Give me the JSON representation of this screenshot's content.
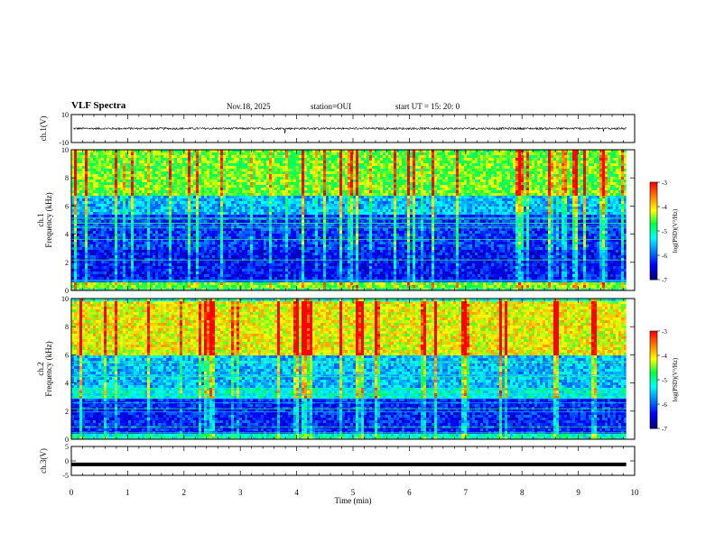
{
  "header": {
    "title": "VLF Spectra",
    "date": "Nov.18, 2025",
    "station": "station=OUI",
    "start_ut": "start UT =  15: 20: 0"
  },
  "colors": {
    "scale": [
      "#000080",
      "#0000ff",
      "#0080ff",
      "#00ffff",
      "#00ff40",
      "#ffff00",
      "#ff8000",
      "#ff0000",
      "#ffffff"
    ]
  },
  "chart_data": [
    {
      "type": "line",
      "name": "ch1-waveform",
      "ylabel": "ch.1(V)",
      "ylim": [
        -10,
        10
      ],
      "yticks": [
        "10",
        "-10"
      ],
      "xlim": [
        0,
        10
      ],
      "approx_level": 0,
      "approx_amplitude": 1.5
    },
    {
      "type": "heatmap",
      "name": "ch1-spectrogram",
      "ylabel_channel": "ch.1",
      "ylabel": "Frequency (kHz)",
      "ylim": [
        0,
        10
      ],
      "yticks": [
        "0",
        "2",
        "4",
        "6",
        "8",
        "10"
      ],
      "xlim": [
        0,
        10
      ],
      "data_end_min": 9.85,
      "colorbar": {
        "label": "log(PSD)(V²/Hz)",
        "range": [
          -7,
          -3
        ],
        "ticks": [
          "-3",
          "-4",
          "-5",
          "-6",
          "-7"
        ]
      },
      "bands": [
        {
          "from_khz": 0,
          "to_khz": 0.7,
          "level": -4.5
        },
        {
          "from_khz": 0.7,
          "to_khz": 3.0,
          "level": -6.4
        },
        {
          "from_khz": 3.0,
          "to_khz": 5.5,
          "level": -6.2
        },
        {
          "from_khz": 5.5,
          "to_khz": 6.8,
          "level": -5.6
        },
        {
          "from_khz": 6.8,
          "to_khz": 10,
          "level": -4.5
        }
      ]
    },
    {
      "type": "heatmap",
      "name": "ch2-spectrogram",
      "ylabel_channel": "ch.2",
      "ylabel": "Frequency (kHz)",
      "ylim": [
        0,
        10
      ],
      "yticks": [
        "0",
        "2",
        "4",
        "6",
        "8",
        "10"
      ],
      "xlim": [
        0,
        10
      ],
      "data_end_min": 9.85,
      "colorbar": {
        "label": "log(PSD)(V²/Hz)",
        "range": [
          -7,
          -3
        ],
        "ticks": [
          "-3",
          "-4",
          "-5",
          "-6",
          "-7"
        ]
      },
      "bands": [
        {
          "from_khz": 0,
          "to_khz": 0.4,
          "level": -5.2
        },
        {
          "from_khz": 0.4,
          "to_khz": 3.0,
          "level": -6.3
        },
        {
          "from_khz": 3.0,
          "to_khz": 3.8,
          "level": -5.2
        },
        {
          "from_khz": 3.8,
          "to_khz": 6.0,
          "level": -5.6
        },
        {
          "from_khz": 6.0,
          "to_khz": 10,
          "level": -4.1
        }
      ]
    },
    {
      "type": "line",
      "name": "ch3-waveform",
      "ylabel": "ch.3(V)",
      "ylim": [
        -5,
        5
      ],
      "yticks": [
        "5",
        "0",
        "-5"
      ],
      "xlim": [
        0,
        10
      ],
      "approx_level": -1.2
    }
  ],
  "xaxis": {
    "label": "Time (min)",
    "ticks": [
      "0",
      "1",
      "2",
      "3",
      "4",
      "5",
      "6",
      "7",
      "8",
      "9",
      "10"
    ]
  }
}
